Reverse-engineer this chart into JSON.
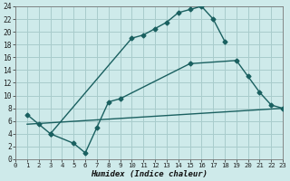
{
  "xlabel": "Humidex (Indice chaleur)",
  "bg_color": "#ceeaea",
  "grid_color": "#a8cccc",
  "line_color": "#1a6060",
  "line1_x": [
    1,
    2,
    3,
    10,
    11,
    12,
    13,
    14,
    15,
    16,
    17,
    18
  ],
  "line1_y": [
    7,
    5.5,
    4,
    19,
    19.5,
    20.5,
    21.5,
    23,
    23.5,
    24,
    22,
    18.5
  ],
  "line2_x": [
    3,
    5,
    6,
    7,
    8,
    9,
    15,
    19,
    20,
    21,
    22,
    23
  ],
  "line2_y": [
    4,
    2.5,
    1,
    5,
    9,
    9.5,
    15,
    15.5,
    13,
    10.5,
    8.5,
    8
  ],
  "line3_x": [
    1,
    23
  ],
  "line3_y": [
    5.5,
    8
  ],
  "xlim": [
    0,
    23
  ],
  "ylim": [
    0,
    24
  ],
  "xticks": [
    0,
    1,
    2,
    3,
    4,
    5,
    6,
    7,
    8,
    9,
    10,
    11,
    12,
    13,
    14,
    15,
    16,
    17,
    18,
    19,
    20,
    21,
    22,
    23
  ],
  "yticks": [
    0,
    2,
    4,
    6,
    8,
    10,
    12,
    14,
    16,
    18,
    20,
    22,
    24
  ],
  "xlabel_fontsize": 6.5,
  "tick_fontsize": 5.2
}
